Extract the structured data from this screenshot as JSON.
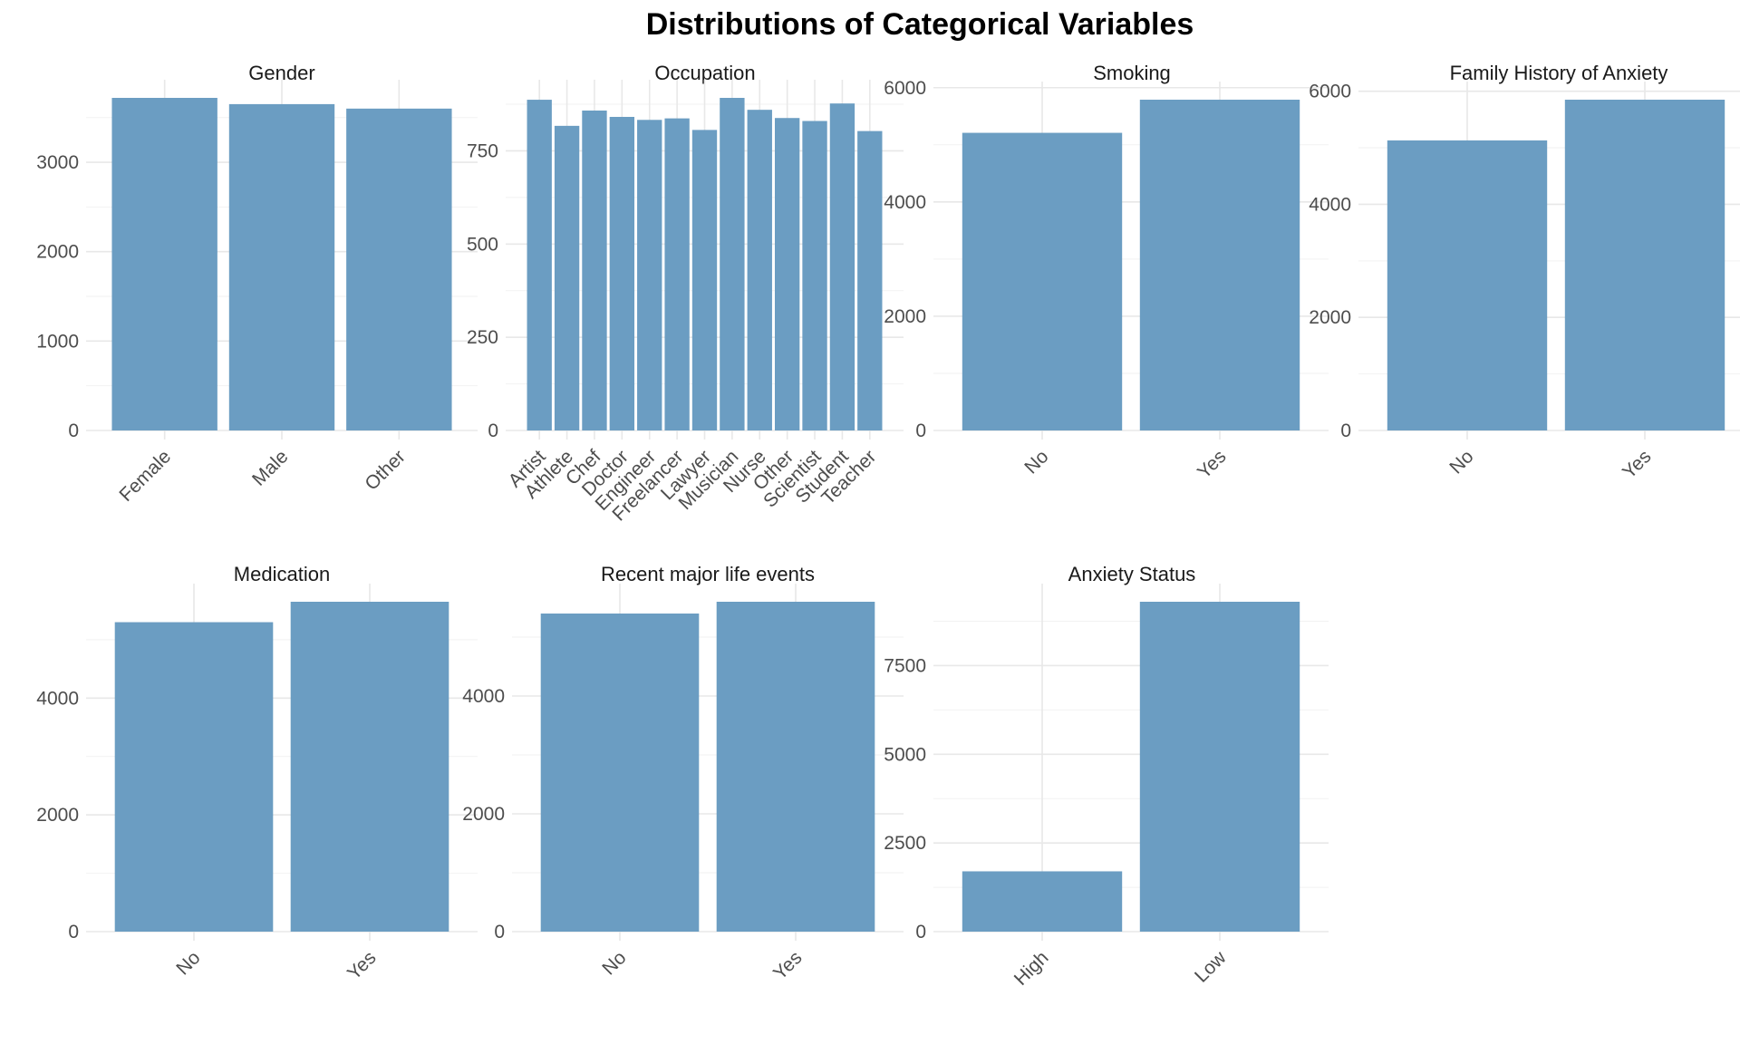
{
  "figure": {
    "title": "Distributions of Categorical Variables"
  },
  "colors": {
    "bar": "#6b9dc2",
    "grid_major": "#e8e8e8",
    "grid_minor": "#f2f2f2"
  },
  "chart_data": [
    {
      "type": "bar",
      "title": "Gender",
      "xlabel": "",
      "ylabel": "",
      "categories": [
        "Female",
        "Male",
        "Other"
      ],
      "values": [
        3720,
        3650,
        3600
      ],
      "ylim": [
        0,
        3720
      ],
      "yticks": [
        0,
        1000,
        2000,
        3000
      ],
      "grid": true
    },
    {
      "type": "bar",
      "title": "Occupation",
      "xlabel": "",
      "ylabel": "",
      "categories": [
        "Artist",
        "Athlete",
        "Chef",
        "Doctor",
        "Engineer",
        "Freelancer",
        "Lawyer",
        "Musician",
        "Nurse",
        "Other",
        "Scientist",
        "Student",
        "Teacher"
      ],
      "values": [
        887,
        817,
        858,
        841,
        833,
        837,
        806,
        892,
        860,
        838,
        830,
        877,
        803
      ],
      "ylim": [
        0,
        892
      ],
      "yticks": [
        0,
        250,
        500,
        750
      ],
      "grid": true
    },
    {
      "type": "bar",
      "title": "Smoking",
      "xlabel": "",
      "ylabel": "",
      "categories": [
        "No",
        "Yes"
      ],
      "values": [
        5210,
        5790
      ],
      "ylim": [
        0,
        5790
      ],
      "yticks": [
        0,
        2000,
        4000,
        6000
      ],
      "grid": true
    },
    {
      "type": "bar",
      "title": "Family History of Anxiety",
      "xlabel": "",
      "ylabel": "",
      "categories": [
        "No",
        "Yes"
      ],
      "values": [
        5130,
        5850
      ],
      "ylim": [
        0,
        5850
      ],
      "yticks": [
        0,
        2000,
        4000,
        6000
      ],
      "grid": true
    },
    {
      "type": "bar",
      "title": "Medication",
      "xlabel": "",
      "ylabel": "",
      "categories": [
        "No",
        "Yes"
      ],
      "values": [
        5300,
        5650
      ],
      "ylim": [
        0,
        5650
      ],
      "yticks": [
        0,
        2000,
        4000
      ],
      "grid": true
    },
    {
      "type": "bar",
      "title": "Recent major life events",
      "xlabel": "",
      "ylabel": "",
      "categories": [
        "No",
        "Yes"
      ],
      "values": [
        5400,
        5600
      ],
      "ylim": [
        0,
        5600
      ],
      "yticks": [
        0,
        2000,
        4000
      ],
      "grid": true
    },
    {
      "type": "bar",
      "title": "Anxiety Status",
      "xlabel": "",
      "ylabel": "",
      "categories": [
        "High",
        "Low"
      ],
      "values": [
        1700,
        9300
      ],
      "ylim": [
        0,
        9300
      ],
      "yticks": [
        0,
        2500,
        5000,
        7500
      ],
      "grid": true
    }
  ]
}
